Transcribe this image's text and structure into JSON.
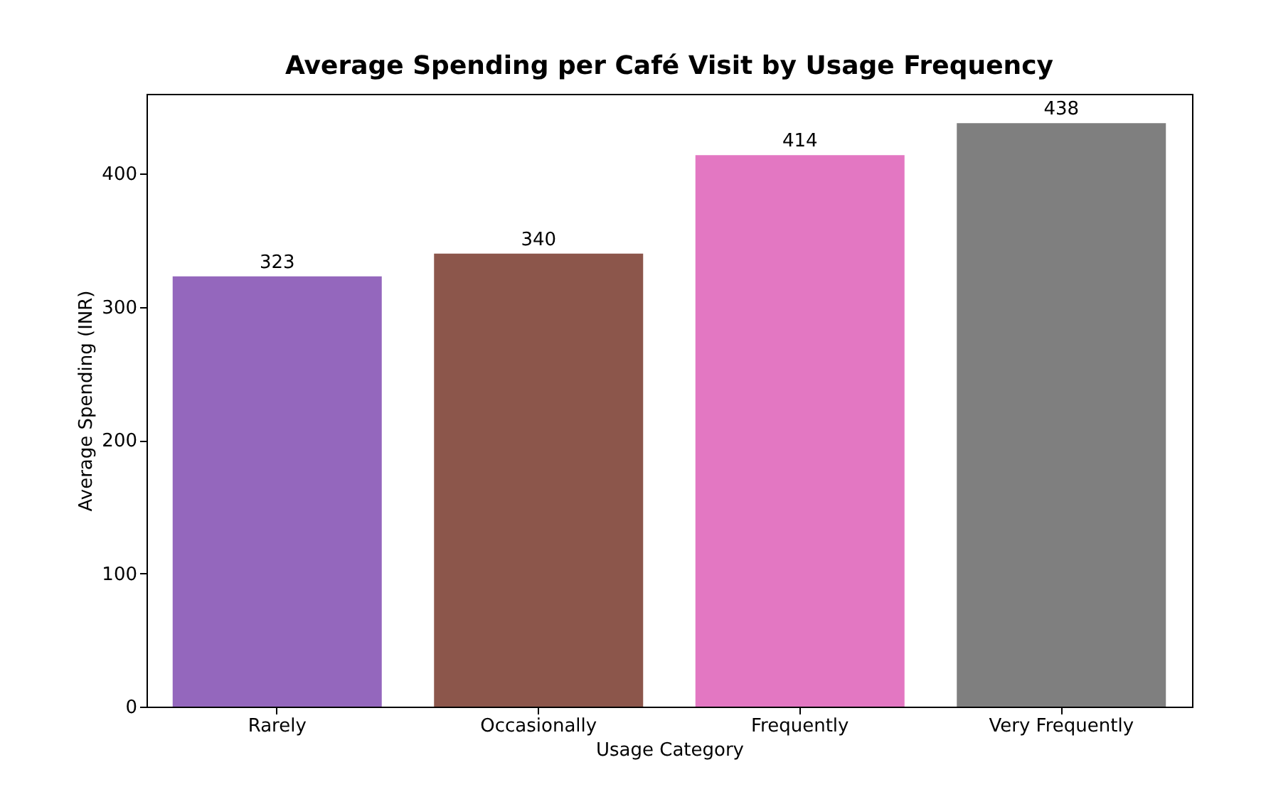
{
  "chart_data": {
    "type": "bar",
    "title": "Average Spending per Café Visit by Usage Frequency",
    "xlabel": "Usage Category",
    "ylabel": "Average Spending (INR)",
    "categories": [
      "Rarely",
      "Occasionally",
      "Frequently",
      "Very Frequently"
    ],
    "values": [
      323,
      340,
      414,
      438
    ],
    "colors": [
      "#9467bd",
      "#8c564b",
      "#e377c2",
      "#7f7f7f"
    ],
    "ylim": [
      0,
      460
    ],
    "yticks": [
      0,
      100,
      200,
      300,
      400
    ],
    "data_labels": true,
    "grid": false,
    "legend": false
  }
}
